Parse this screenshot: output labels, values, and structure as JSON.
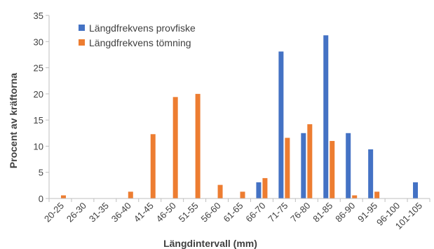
{
  "chart_data": {
    "type": "bar",
    "xlabel": "Längdintervall (mm)",
    "ylabel": "Procent av kräftorna",
    "ylim": [
      0,
      35
    ],
    "yticks": [
      0,
      5,
      10,
      15,
      20,
      25,
      30,
      35
    ],
    "grid": false,
    "legend_position": "top-left",
    "categories": [
      "20-25",
      "26-30",
      "31-35",
      "36-40",
      "41-45",
      "46-50",
      "51-55",
      "56-60",
      "61-65",
      "66-70",
      "71-75",
      "76-80",
      "81-85",
      "86-90",
      "91-95",
      "96-100",
      "101-105"
    ],
    "series": [
      {
        "name": "Längdfrekvens provfiske",
        "color": "#4472C4",
        "values": [
          0,
          0,
          0,
          0,
          0,
          0,
          0,
          0,
          0,
          3.1,
          28.1,
          12.5,
          31.2,
          12.5,
          9.4,
          0,
          3.1
        ]
      },
      {
        "name": "Längdfrekvens tömning",
        "color": "#ED7D31",
        "values": [
          0.6,
          0,
          0,
          1.3,
          12.3,
          19.4,
          20,
          2.6,
          1.3,
          3.9,
          11.6,
          14.2,
          11,
          0.6,
          1.3,
          0,
          0
        ]
      }
    ]
  }
}
